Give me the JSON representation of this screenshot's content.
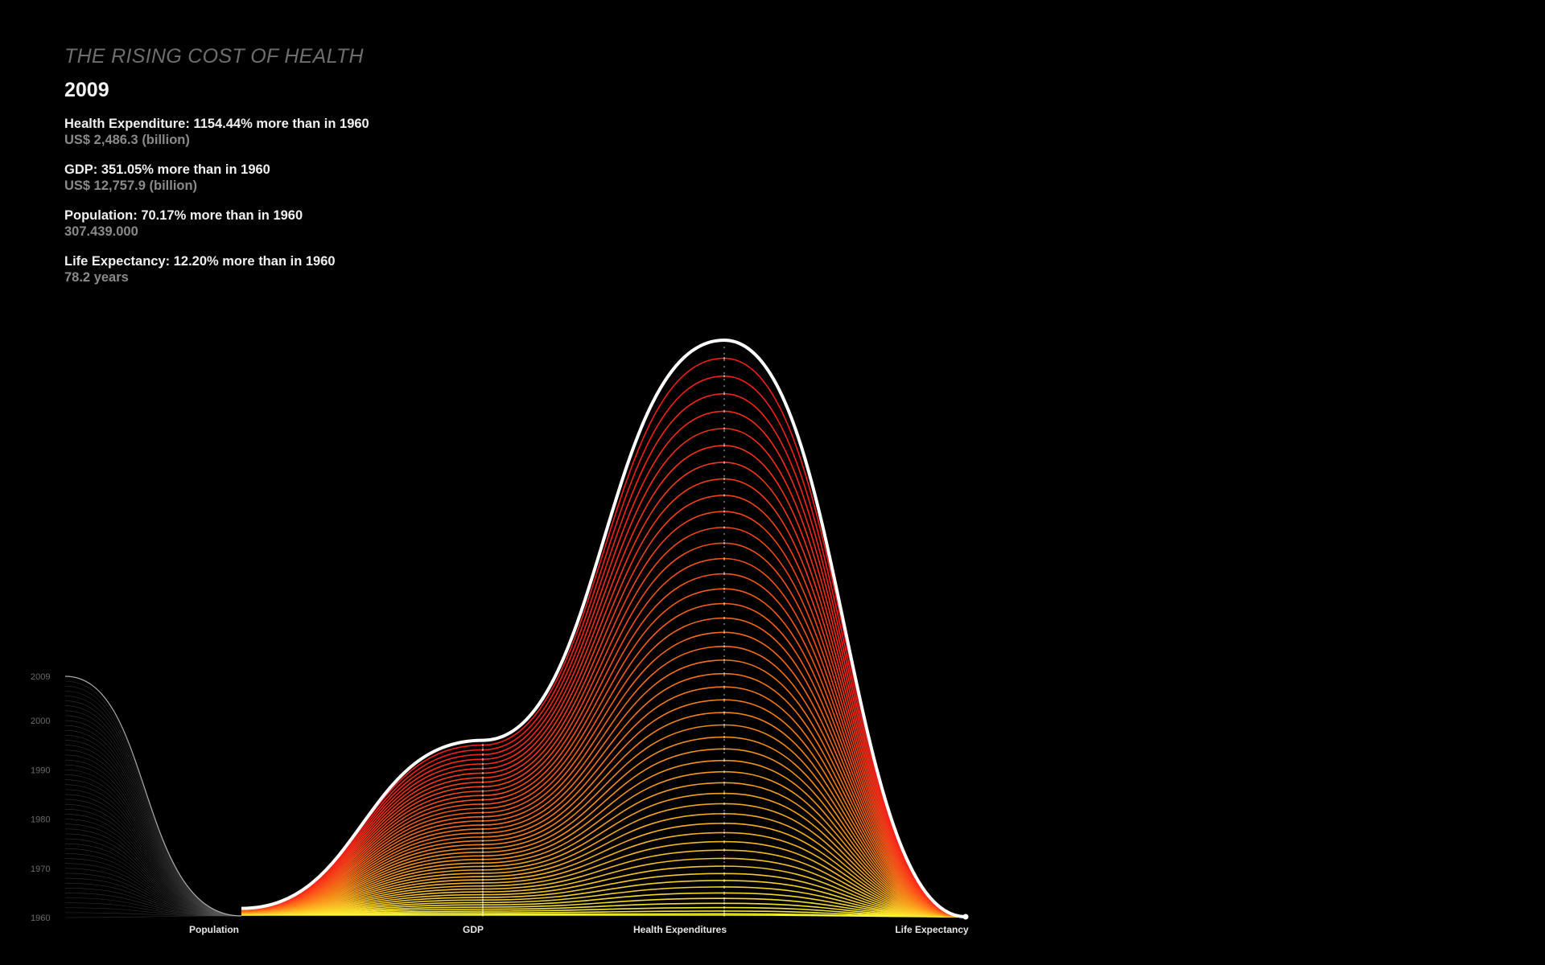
{
  "header": {
    "title": "THE RISING COST OF HEALTH",
    "year": "2009"
  },
  "stats": [
    {
      "label": "Health Expenditure: 1154.44% more than in 1960",
      "value": "US$ 2,486.3 (billion)"
    },
    {
      "label": "GDP: 351.05% more than in 1960",
      "value": "US$ 12,757.9 (billion)"
    },
    {
      "label": "Population: 70.17% more than in 1960",
      "value": "307.439.000"
    },
    {
      "label": "Life Expectancy: 12.20% more than in 1960",
      "value": "78.2 years"
    }
  ],
  "chart_data": {
    "type": "line",
    "title": "",
    "categories": [
      "Population",
      "GDP",
      "Health Expenditures",
      "Life Expectancy"
    ],
    "year_ticks": [
      "1960",
      "1970",
      "1980",
      "1990",
      "2000",
      "2009"
    ],
    "highlight_year": "2009",
    "years": [
      1960,
      1961,
      1962,
      1963,
      1964,
      1965,
      1966,
      1967,
      1968,
      1969,
      1970,
      1971,
      1972,
      1973,
      1974,
      1975,
      1976,
      1977,
      1978,
      1979,
      1980,
      1981,
      1982,
      1983,
      1984,
      1985,
      1986,
      1987,
      1988,
      1989,
      1990,
      1991,
      1992,
      1993,
      1994,
      1995,
      1996,
      1997,
      1998,
      1999,
      2000,
      2001,
      2002,
      2003,
      2004,
      2005,
      2006,
      2007,
      2008,
      2009
    ],
    "series_2009_percent_increase_vs_1960": {
      "Population": 70.17,
      "GDP": 351.05,
      "Health Expenditures": 1154.44,
      "Life Expectancy": 12.2
    },
    "colors": {
      "background": "#000000",
      "highlight": "#ffffff",
      "low": "#ffff33",
      "mid": "#ff8c1a",
      "high": "#ff1a1a",
      "years_fan": "#bfbfbf"
    }
  }
}
